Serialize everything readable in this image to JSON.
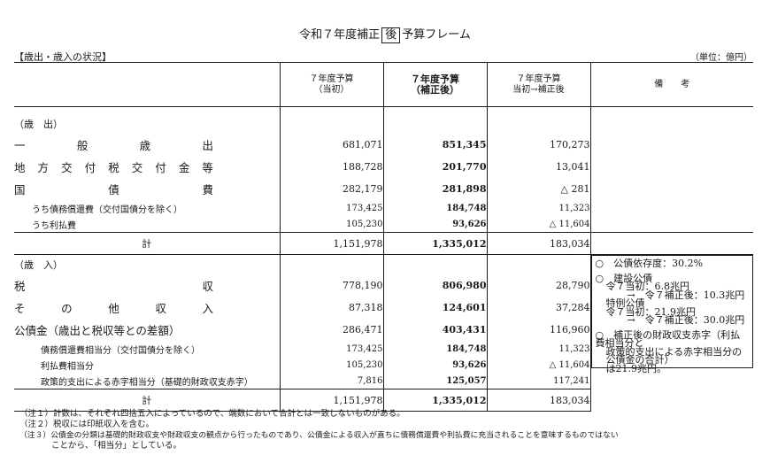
{
  "title": {
    "prefix": "令和７年度補正",
    "boxed": "後",
    "suffix": "予算フレーム"
  },
  "section_head": "【歳出・歳入の状況】",
  "unit": "（単位：億円）",
  "header": {
    "col_init_line1": "７年度予算",
    "col_init_line2": "（当初）",
    "col_rev_line1": "７年度予算",
    "col_rev_line2": "（補正後）",
    "col_diff_line1": "７年度予算",
    "col_diff_line2": "当初→補正後",
    "col_remarks": "備　　考"
  },
  "expenditure": {
    "section_label": "（歳　出）",
    "general_chars": [
      "一",
      "般",
      "歳",
      "出"
    ],
    "general": {
      "init": "681,071",
      "rev": "851,345",
      "diff": "170,273"
    },
    "local_chars": [
      "地",
      "方",
      "交",
      "付",
      "税",
      "交",
      "付",
      "金",
      "等"
    ],
    "local": {
      "init": "188,728",
      "rev": "201,770",
      "diff": "13,041"
    },
    "bonds_chars": [
      "国",
      "債",
      "費"
    ],
    "bonds": {
      "init": "282,179",
      "rev": "281,898",
      "diff": "△ 281"
    },
    "redemption_label": "うち債務償還費（交付国債分を除く）",
    "redemption": {
      "init": "173,425",
      "rev": "184,748",
      "diff": "11,323"
    },
    "interest_label": "うち利払費",
    "interest": {
      "init": "105,230",
      "rev": "93,626",
      "diff": "△ 11,604"
    },
    "total_label": "計",
    "total": {
      "init": "1,151,978",
      "rev": "1,335,012",
      "diff": "183,034"
    }
  },
  "revenue": {
    "section_label": "（歳　入）",
    "tax_chars": [
      "税",
      "収"
    ],
    "tax": {
      "init": "778,190",
      "rev": "806,980",
      "diff": "28,790"
    },
    "other_chars": [
      "そ",
      "の",
      "他",
      "収",
      "入"
    ],
    "other": {
      "init": "87,318",
      "rev": "124,601",
      "diff": "37,284"
    },
    "bond_label": "公債金（歳出と税収等との差額）",
    "bond": {
      "init": "286,471",
      "rev": "403,431",
      "diff": "116,960"
    },
    "redemption_label": "債務償還費相当分（交付国債分を除く）",
    "redemption": {
      "init": "173,425",
      "rev": "184,748",
      "diff": "11,323"
    },
    "interest_label": "利払費相当分",
    "interest": {
      "init": "105,230",
      "rev": "93,626",
      "diff": "△ 11,604"
    },
    "deficit_label": "政策的支出による赤字相当分（基礎的財政収支赤字）",
    "deficit": {
      "init": "7,816",
      "rev": "125,057",
      "diff": "117,241"
    },
    "total_label": "計",
    "total": {
      "init": "1,151,978",
      "rev": "1,335,012",
      "diff": "183,034"
    }
  },
  "remarks": {
    "dependency": "○　公債依存度：30.2%",
    "construction_title": "○　建設公債",
    "construction_init": "令７当初：6.8兆円",
    "construction_rev": "→　令７補正後：10.3兆円",
    "special_title": "特例公債",
    "special_init": "令７当初：21.9兆円",
    "special_rev": "→　令７補正後：30.0兆円",
    "note_line1": "○　補正後の財政収支赤字（利払費相当分と",
    "note_line2": "政策的支出による赤字相当分の公債金の合計）",
    "note_line3": "は21.9兆円。"
  },
  "notes": {
    "n1": "（注１）計数は、それぞれ四捨五入によっているので、端数において合計とは一致しないものがある。",
    "n2": "（注２）税収には印紙収入を含む。",
    "n3": "（注３）公債金の分類は基礎的財政収支や財政収支の観点から行ったものであり、公債金による収入が直ちに債務償還費や利払費に充当されることを意味するものではない",
    "n3_cont": "ことから、「相当分」としている。"
  }
}
